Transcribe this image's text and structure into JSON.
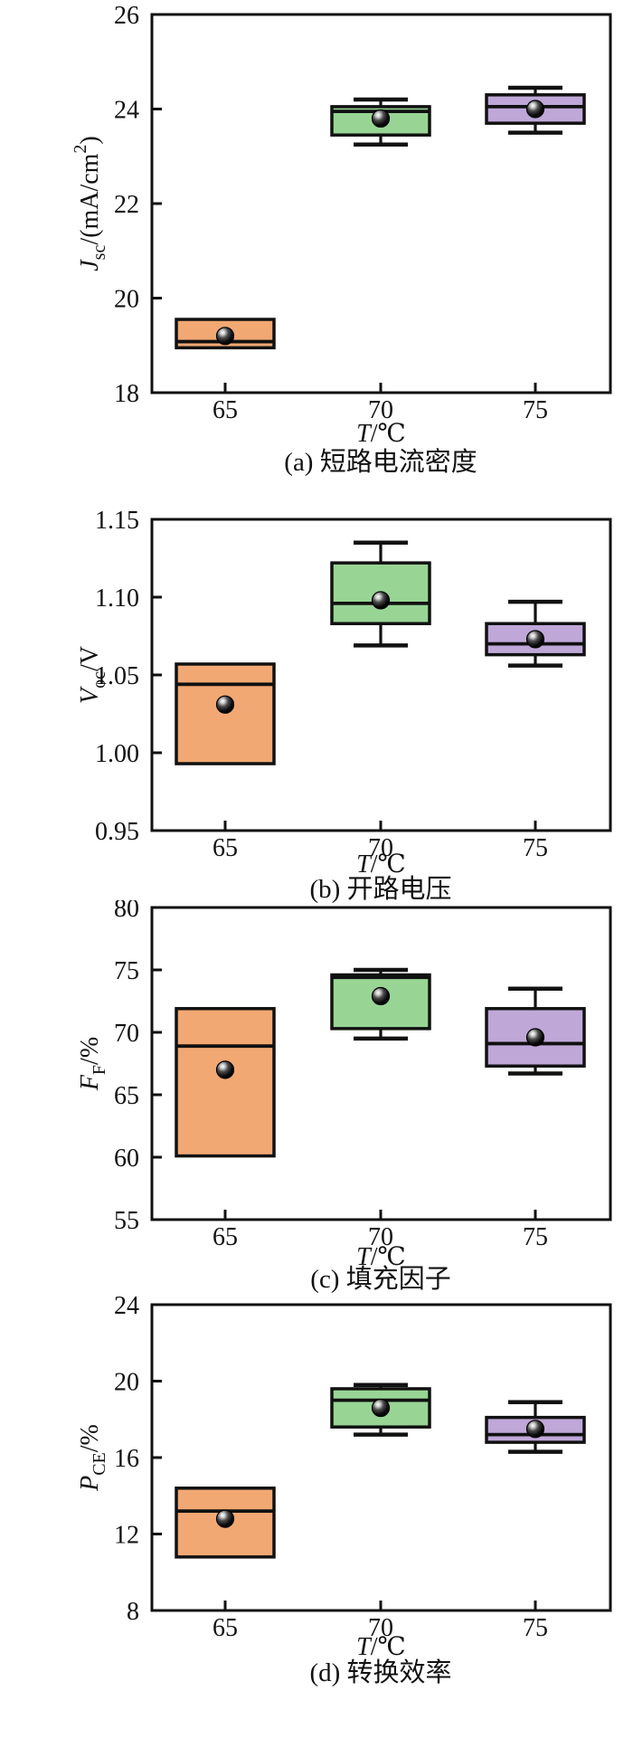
{
  "page": {
    "background": "#ffffff"
  },
  "style": {
    "axis_color": "#111111",
    "box_edge_color": "#111111",
    "mean_marker": "black-sphere-with-highlight",
    "box_fill_65": "#F2A873",
    "box_fill_70": "#98D595",
    "box_fill_75": "#BFA8D8"
  },
  "chart_data": [
    {
      "id": "a",
      "type": "box",
      "caption": "(a) 短路电流密度",
      "xlabel_segments": [
        {
          "t": "T",
          "style": "italic"
        },
        {
          "t": "/℃"
        }
      ],
      "ylabel_segments": [
        {
          "t": "J",
          "style": "italic"
        },
        {
          "t": "sc",
          "style": "sub"
        },
        {
          "t": "/(mA/cm"
        },
        {
          "t": "2",
          "style": "sup"
        },
        {
          "t": ")"
        }
      ],
      "ylim": [
        18,
        26
      ],
      "yticks": [
        18,
        20,
        22,
        24,
        26
      ],
      "ytick_labels": [
        "18",
        "20",
        "22",
        "24",
        "26"
      ],
      "categories": [
        "65",
        "70",
        "75"
      ],
      "legend": null,
      "grid": false,
      "boxes": [
        {
          "category": "65",
          "color": "#F2A873",
          "whisker_low": 18.95,
          "q1": 18.95,
          "median": 19.08,
          "mean": 19.2,
          "q3": 19.55,
          "whisker_high": 19.55
        },
        {
          "category": "70",
          "color": "#98D595",
          "whisker_low": 23.25,
          "q1": 23.45,
          "median": 23.95,
          "mean": 23.8,
          "q3": 24.05,
          "whisker_high": 24.2
        },
        {
          "category": "75",
          "color": "#BFA8D8",
          "whisker_low": 23.5,
          "q1": 23.7,
          "median": 24.05,
          "mean": 24.0,
          "q3": 24.3,
          "whisker_high": 24.45
        }
      ]
    },
    {
      "id": "b",
      "type": "box",
      "caption": "(b) 开路电压",
      "xlabel_segments": [
        {
          "t": "T",
          "style": "italic"
        },
        {
          "t": "/℃"
        }
      ],
      "ylabel_segments": [
        {
          "t": "V",
          "style": "italic"
        },
        {
          "t": "oc",
          "style": "sub"
        },
        {
          "t": "/V"
        }
      ],
      "ylim": [
        0.95,
        1.15
      ],
      "yticks": [
        0.95,
        1.0,
        1.05,
        1.1,
        1.15
      ],
      "ytick_labels": [
        "0.95",
        "1.00",
        "1.05",
        "1.10",
        "1.15"
      ],
      "categories": [
        "65",
        "70",
        "75"
      ],
      "legend": null,
      "grid": false,
      "boxes": [
        {
          "category": "65",
          "color": "#F2A873",
          "whisker_low": 0.993,
          "q1": 0.993,
          "median": 1.044,
          "mean": 1.031,
          "q3": 1.057,
          "whisker_high": 1.057
        },
        {
          "category": "70",
          "color": "#98D595",
          "whisker_low": 1.069,
          "q1": 1.083,
          "median": 1.096,
          "mean": 1.098,
          "q3": 1.122,
          "whisker_high": 1.135
        },
        {
          "category": "75",
          "color": "#BFA8D8",
          "whisker_low": 1.056,
          "q1": 1.063,
          "median": 1.07,
          "mean": 1.073,
          "q3": 1.083,
          "whisker_high": 1.097
        }
      ]
    },
    {
      "id": "c",
      "type": "box",
      "caption": "(c) 填充因子",
      "xlabel_segments": [
        {
          "t": "T",
          "style": "italic"
        },
        {
          "t": "/℃"
        }
      ],
      "ylabel_segments": [
        {
          "t": "F",
          "style": "italic"
        },
        {
          "t": "F",
          "style": "sub"
        },
        {
          "t": "/%"
        }
      ],
      "ylim": [
        55,
        80
      ],
      "yticks": [
        55,
        60,
        65,
        70,
        75,
        80
      ],
      "ytick_labels": [
        "55",
        "60",
        "65",
        "70",
        "75",
        "80"
      ],
      "categories": [
        "65",
        "70",
        "75"
      ],
      "legend": null,
      "grid": false,
      "boxes": [
        {
          "category": "65",
          "color": "#F2A873",
          "whisker_low": 60.1,
          "q1": 60.1,
          "median": 68.9,
          "mean": 67.0,
          "q3": 71.9,
          "whisker_high": 71.9
        },
        {
          "category": "70",
          "color": "#98D595",
          "whisker_low": 69.5,
          "q1": 70.3,
          "median": 74.4,
          "mean": 72.9,
          "q3": 74.6,
          "whisker_high": 75.0
        },
        {
          "category": "75",
          "color": "#BFA8D8",
          "whisker_low": 66.7,
          "q1": 67.3,
          "median": 69.1,
          "mean": 69.6,
          "q3": 71.9,
          "whisker_high": 73.5
        }
      ]
    },
    {
      "id": "d",
      "type": "box",
      "caption": "(d) 转换效率",
      "xlabel_segments": [
        {
          "t": "T",
          "style": "italic"
        },
        {
          "t": "/℃"
        }
      ],
      "ylabel_segments": [
        {
          "t": "P",
          "style": "italic"
        },
        {
          "t": "CE",
          "style": "sub"
        },
        {
          "t": "/%"
        }
      ],
      "ylim": [
        8,
        24
      ],
      "yticks": [
        8,
        12,
        16,
        20,
        24
      ],
      "ytick_labels": [
        "8",
        "12",
        "16",
        "20",
        "24"
      ],
      "categories": [
        "65",
        "70",
        "75"
      ],
      "legend": null,
      "grid": false,
      "boxes": [
        {
          "category": "65",
          "color": "#F2A873",
          "whisker_low": 10.8,
          "q1": 10.8,
          "median": 13.2,
          "mean": 12.8,
          "q3": 14.4,
          "whisker_high": 14.4
        },
        {
          "category": "70",
          "color": "#98D595",
          "whisker_low": 17.2,
          "q1": 17.6,
          "median": 19.0,
          "mean": 18.6,
          "q3": 19.6,
          "whisker_high": 19.8
        },
        {
          "category": "75",
          "color": "#BFA8D8",
          "whisker_low": 16.3,
          "q1": 16.8,
          "median": 17.2,
          "mean": 17.5,
          "q3": 18.1,
          "whisker_high": 18.9
        }
      ]
    }
  ]
}
